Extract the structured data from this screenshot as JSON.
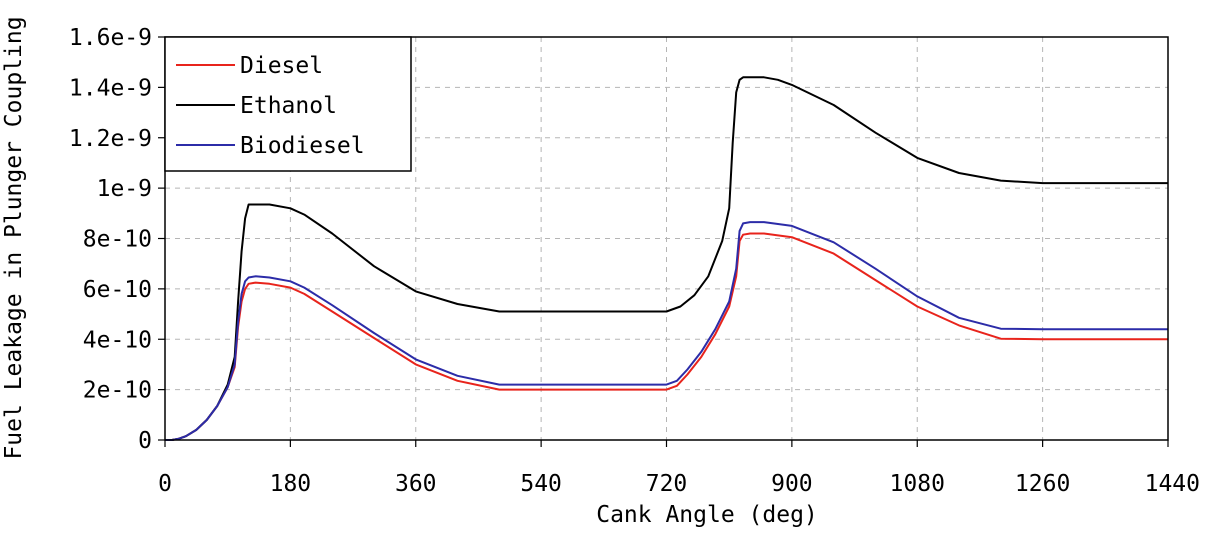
{
  "chart_data": {
    "type": "line",
    "xlabel": "Cank Angle (deg)",
    "ylabel": "Fuel Leakage in Plunger Coupling",
    "xlim": [
      0,
      1440
    ],
    "ylim": [
      0,
      1.6e-09
    ],
    "x_ticks": [
      0,
      180,
      360,
      540,
      720,
      900,
      1080,
      1260,
      1440
    ],
    "x_tick_labels": [
      "0",
      "180",
      "360",
      "540",
      "720",
      "900",
      "1080",
      "1260",
      "1440"
    ],
    "y_ticks": [
      0,
      2e-10,
      4e-10,
      6e-10,
      8e-10,
      1e-09,
      1.2e-09,
      1.4e-09,
      1.6e-09
    ],
    "y_tick_labels": [
      "0",
      "2e-10",
      "4e-10",
      "6e-10",
      "8e-10",
      "1e-9",
      "1.2e-9",
      "1.4e-9",
      "1.6e-9"
    ],
    "grid": true,
    "legend_position": "top-left",
    "series": [
      {
        "name": "Diesel",
        "color": "#e8241c",
        "x": [
          0,
          10,
          20,
          30,
          45,
          60,
          75,
          90,
          100,
          105,
          110,
          115,
          120,
          130,
          150,
          180,
          200,
          240,
          300,
          360,
          420,
          480,
          540,
          600,
          660,
          720,
          735,
          750,
          770,
          790,
          810,
          820,
          825,
          830,
          840,
          860,
          900,
          960,
          1020,
          1080,
          1140,
          1200,
          1260,
          1320,
          1380,
          1440
        ],
        "y": [
          0,
          0,
          5e-12,
          1.5e-11,
          4e-11,
          8e-11,
          1.35e-10,
          2.1e-10,
          2.9e-10,
          4.5e-10,
          5.5e-10,
          6e-10,
          6.2e-10,
          6.25e-10,
          6.2e-10,
          6.05e-10,
          5.8e-10,
          5.1e-10,
          4.05e-10,
          3e-10,
          2.35e-10,
          2e-10,
          2e-10,
          2e-10,
          2e-10,
          2e-10,
          2.15e-10,
          2.6e-10,
          3.3e-10,
          4.2e-10,
          5.3e-10,
          6.5e-10,
          7.9e-10,
          8.15e-10,
          8.2e-10,
          8.2e-10,
          8.05e-10,
          7.4e-10,
          6.35e-10,
          5.3e-10,
          4.55e-10,
          4.02e-10,
          4e-10,
          4e-10,
          4e-10,
          4e-10
        ]
      },
      {
        "name": "Ethanol",
        "color": "#000000",
        "x": [
          0,
          10,
          20,
          30,
          45,
          60,
          75,
          90,
          100,
          105,
          110,
          115,
          120,
          130,
          150,
          180,
          200,
          240,
          300,
          360,
          420,
          480,
          540,
          600,
          660,
          720,
          740,
          760,
          780,
          800,
          810,
          815,
          820,
          825,
          830,
          840,
          860,
          880,
          900,
          960,
          1020,
          1080,
          1140,
          1200,
          1260,
          1320,
          1380,
          1440
        ],
        "y": [
          0,
          0,
          5e-12,
          1.5e-11,
          4e-11,
          8e-11,
          1.35e-10,
          2.2e-10,
          3.3e-10,
          5.5e-10,
          7.5e-10,
          8.8e-10,
          9.35e-10,
          9.35e-10,
          9.35e-10,
          9.2e-10,
          8.95e-10,
          8.2e-10,
          6.9e-10,
          5.9e-10,
          5.4e-10,
          5.1e-10,
          5.1e-10,
          5.1e-10,
          5.1e-10,
          5.1e-10,
          5.3e-10,
          5.75e-10,
          6.5e-10,
          7.9e-10,
          9.2e-10,
          1.18e-09,
          1.38e-09,
          1.43e-09,
          1.44e-09,
          1.44e-09,
          1.44e-09,
          1.43e-09,
          1.41e-09,
          1.33e-09,
          1.22e-09,
          1.12e-09,
          1.06e-09,
          1.03e-09,
          1.02e-09,
          1.02e-09,
          1.02e-09,
          1.02e-09
        ]
      },
      {
        "name": "Biodiesel",
        "color": "#2c2ca8",
        "x": [
          0,
          10,
          20,
          30,
          45,
          60,
          75,
          90,
          100,
          105,
          110,
          115,
          120,
          130,
          150,
          180,
          200,
          240,
          300,
          360,
          420,
          480,
          540,
          600,
          660,
          720,
          735,
          750,
          770,
          790,
          810,
          820,
          825,
          830,
          840,
          860,
          900,
          960,
          1020,
          1080,
          1140,
          1200,
          1260,
          1320,
          1380,
          1440
        ],
        "y": [
          0,
          0,
          5e-12,
          1.5e-11,
          4e-11,
          8e-11,
          1.35e-10,
          2.1e-10,
          3e-10,
          4.7e-10,
          5.8e-10,
          6.3e-10,
          6.45e-10,
          6.5e-10,
          6.45e-10,
          6.3e-10,
          6.05e-10,
          5.35e-10,
          4.25e-10,
          3.2e-10,
          2.55e-10,
          2.2e-10,
          2.2e-10,
          2.2e-10,
          2.2e-10,
          2.2e-10,
          2.35e-10,
          2.8e-10,
          3.5e-10,
          4.4e-10,
          5.5e-10,
          6.8e-10,
          8.3e-10,
          8.6e-10,
          8.65e-10,
          8.65e-10,
          8.5e-10,
          7.85e-10,
          6.8e-10,
          5.7e-10,
          4.85e-10,
          4.42e-10,
          4.4e-10,
          4.4e-10,
          4.4e-10,
          4.4e-10
        ]
      }
    ]
  }
}
